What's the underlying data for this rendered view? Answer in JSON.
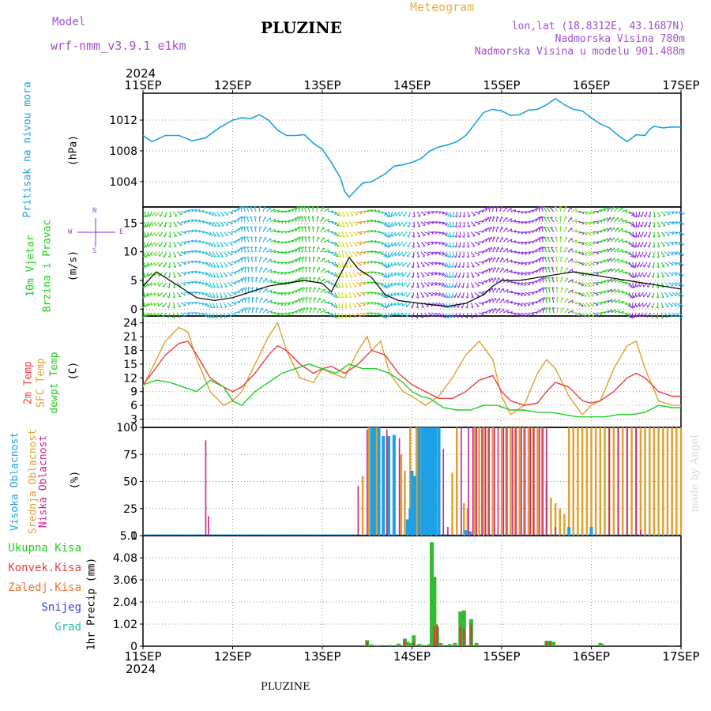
{
  "header": {
    "model_label": "Model",
    "model_name": "wrf-nmm_v3.9.1 e1km",
    "station": "PLUZINE",
    "meteogram": "Meteogram",
    "lonlat": "lon,lat (18.8312E, 43.1687N)",
    "altitude": "Nadmorska Visina 780m",
    "model_altitude": "Nadmorska Visina u modelu 901.488m",
    "year_top": "2024",
    "year_bottom": "2024",
    "footer_station": "PLUZINE",
    "credit": "made by Angel"
  },
  "colors": {
    "pressure": "#1ea0e6",
    "temp2m": "#e84040",
    "sfc": "#e0a030",
    "dewpt": "#22cc22",
    "high_cloud": "#1ea0e6",
    "mid_cloud": "#e0a030",
    "low_cloud": "#cc2288",
    "total_precip": "#33bb33",
    "conv_precip": "#dd3333",
    "wind_purple": "#8a2be2"
  },
  "x_axis": {
    "days": [
      "11SEP",
      "12SEP",
      "13SEP",
      "14SEP",
      "15SEP",
      "16SEP",
      "17SEP"
    ]
  },
  "panels": {
    "pressure": {
      "labels": [
        "Pritisak na nivou mora"
      ],
      "unit": "(hPa)"
    },
    "wind": {
      "labels": [
        "10m Vjetar",
        "Brzina i Pravac"
      ],
      "unit": "(m/s)",
      "compass": {
        "n": "N",
        "s": "S",
        "e": "E",
        "w": "W"
      }
    },
    "temp": {
      "labels": [
        "2m Temp",
        "SFC Temp",
        "dewpt Temp"
      ],
      "unit": "(C)"
    },
    "cloud": {
      "labels": [
        "Visoka Oblacnost",
        "Srednja Oblacnost",
        "Niska Oblacnost"
      ],
      "unit": "(%)"
    },
    "precip": {
      "labels": [
        "Ukupna Kisa",
        "Konvek.Kisa",
        "Zaledj.Kisa",
        "Snijeg",
        "Grad"
      ],
      "unit": "1hr Precip (mm)"
    }
  },
  "chart_data": [
    {
      "type": "line",
      "title": "",
      "ylabel": "(hPa)",
      "ylim": [
        1000.7,
        1015.5
      ],
      "yticks": [
        1004,
        1008,
        1012
      ],
      "x_unit": "day offset from 11SEP 00",
      "series": [
        {
          "name": "Pritisak na nivou mora",
          "x": [
            0,
            0.1,
            0.25,
            0.4,
            0.55,
            0.7,
            0.85,
            1.0,
            1.1,
            1.2,
            1.3,
            1.4,
            1.5,
            1.6,
            1.7,
            1.8,
            1.9,
            2.0,
            2.1,
            2.2,
            2.25,
            2.3,
            2.35,
            2.45,
            2.55,
            2.7,
            2.8,
            2.9,
            3.0,
            3.1,
            3.2,
            3.3,
            3.4,
            3.5,
            3.6,
            3.7,
            3.8,
            3.9,
            4.0,
            4.1,
            4.2,
            4.3,
            4.4,
            4.5,
            4.6,
            4.7,
            4.8,
            4.9,
            5.0,
            5.1,
            5.2,
            5.3,
            5.4,
            5.5,
            5.6,
            5.65,
            5.7,
            5.8,
            5.9,
            6.0
          ],
          "values": [
            1010.0,
            1009.2,
            1010.0,
            1010.0,
            1009.3,
            1009.7,
            1011.0,
            1012.0,
            1012.3,
            1012.2,
            1012.7,
            1012.0,
            1010.7,
            1010.0,
            1010.0,
            1010.1,
            1009.0,
            1008.2,
            1006.5,
            1004.5,
            1002.7,
            1002.0,
            1002.6,
            1003.8,
            1004.0,
            1005.0,
            1006.0,
            1006.2,
            1006.5,
            1007.0,
            1008.0,
            1008.5,
            1008.8,
            1009.2,
            1010.0,
            1011.5,
            1013.0,
            1013.4,
            1013.2,
            1012.6,
            1012.7,
            1013.3,
            1013.4,
            1014.0,
            1014.8,
            1014.0,
            1013.4,
            1013.2,
            1012.3,
            1011.5,
            1011.0,
            1010.0,
            1009.2,
            1010.1,
            1010.0,
            1010.8,
            1011.2,
            1011.0,
            1011.1,
            1011.1
          ]
        }
      ]
    },
    {
      "type": "line",
      "title": "",
      "ylabel": "(m/s)",
      "ylim": [
        -1.2,
        17.8
      ],
      "yticks": [
        0,
        5,
        10,
        15
      ],
      "x_unit": "day offset from 11SEP 00",
      "series": [
        {
          "name": "10m Vjetar",
          "x": [
            0,
            0.15,
            0.3,
            0.45,
            0.6,
            0.8,
            1.0,
            1.2,
            1.4,
            1.6,
            1.8,
            2.0,
            2.1,
            2.2,
            2.3,
            2.4,
            2.55,
            2.7,
            2.85,
            3.0,
            3.2,
            3.4,
            3.6,
            3.8,
            3.9,
            4.0,
            4.2,
            4.4,
            4.6,
            4.8,
            5.0,
            5.2,
            5.4,
            5.6,
            5.8,
            6.0
          ],
          "values": [
            4.0,
            6.5,
            5.0,
            3.5,
            2.0,
            1.5,
            2.0,
            3.0,
            4.0,
            4.5,
            5.0,
            4.5,
            3.0,
            6.0,
            9.0,
            7.0,
            5.5,
            2.5,
            1.5,
            1.2,
            0.8,
            0.5,
            1.0,
            2.5,
            4.0,
            5.0,
            5.0,
            5.5,
            6.0,
            6.5,
            6.0,
            5.5,
            5.0,
            4.5,
            4.0,
            3.5
          ]
        }
      ]
    },
    {
      "type": "line",
      "title": "",
      "ylabel": "(C)",
      "ylim": [
        1.2,
        25.5
      ],
      "yticks": [
        3,
        6,
        9,
        12,
        15,
        18,
        21,
        24
      ],
      "x_unit": "day offset from 11SEP 00",
      "series": [
        {
          "name": "2m Temp",
          "x": [
            0,
            0.1,
            0.25,
            0.4,
            0.5,
            0.6,
            0.75,
            0.9,
            1.0,
            1.1,
            1.25,
            1.4,
            1.5,
            1.6,
            1.75,
            1.9,
            2.0,
            2.1,
            2.25,
            2.4,
            2.55,
            2.7,
            2.85,
            3.0,
            3.15,
            3.3,
            3.45,
            3.6,
            3.75,
            3.9,
            4.0,
            4.1,
            4.25,
            4.4,
            4.5,
            4.6,
            4.75,
            4.9,
            5.0,
            5.1,
            5.25,
            5.4,
            5.5,
            5.6,
            5.75,
            5.9,
            6.0
          ],
          "values": [
            10.5,
            13,
            17,
            19.5,
            20,
            17,
            12,
            10,
            9,
            10,
            13,
            17,
            19,
            18,
            15,
            13,
            14,
            14.5,
            13,
            15,
            18,
            17,
            13,
            10.5,
            9,
            7.5,
            7.5,
            9,
            11.5,
            12.5,
            9,
            7,
            6,
            6.5,
            9,
            11,
            10,
            7,
            6.5,
            7,
            9,
            12,
            13,
            12,
            9,
            8,
            8
          ]
        },
        {
          "name": "SFC Temp",
          "x": [
            0,
            0.1,
            0.25,
            0.4,
            0.5,
            0.6,
            0.75,
            0.9,
            1.0,
            1.1,
            1.25,
            1.4,
            1.5,
            1.6,
            1.75,
            1.9,
            2.0,
            2.1,
            2.25,
            2.4,
            2.5,
            2.55,
            2.65,
            2.75,
            2.9,
            3.0,
            3.15,
            3.3,
            3.45,
            3.6,
            3.75,
            3.9,
            4.0,
            4.1,
            4.25,
            4.4,
            4.5,
            4.6,
            4.75,
            4.9,
            5.0,
            5.1,
            5.25,
            5.4,
            5.5,
            5.6,
            5.75,
            5.9,
            6.0
          ],
          "values": [
            10,
            14,
            20,
            23,
            22,
            16,
            9,
            6,
            7,
            9,
            15,
            21,
            24,
            18,
            12,
            11,
            14,
            13,
            12,
            18,
            21,
            18,
            20,
            13,
            9,
            8,
            6,
            8,
            12,
            17,
            20,
            16,
            8,
            4,
            6,
            13,
            16,
            14,
            8,
            4,
            6,
            7,
            14,
            19,
            20,
            14,
            7,
            6,
            6
          ]
        },
        {
          "name": "dewpt Temp",
          "x": [
            0,
            0.15,
            0.3,
            0.45,
            0.6,
            0.75,
            0.9,
            1.0,
            1.1,
            1.25,
            1.4,
            1.55,
            1.7,
            1.85,
            2.0,
            2.15,
            2.3,
            2.45,
            2.6,
            2.75,
            2.9,
            3.0,
            3.1,
            3.2,
            3.35,
            3.5,
            3.65,
            3.8,
            3.95,
            4.1,
            4.25,
            4.4,
            4.55,
            4.7,
            4.85,
            5.0,
            5.15,
            5.3,
            5.45,
            5.6,
            5.75,
            5.9,
            6.0
          ],
          "values": [
            10.5,
            11.5,
            11,
            10,
            9,
            11.5,
            10,
            7,
            6,
            9,
            11,
            13,
            14,
            15,
            14,
            13,
            15,
            14,
            14,
            13,
            11,
            9,
            8,
            7.5,
            5.5,
            5,
            5,
            6,
            6,
            5,
            5,
            4.5,
            4.5,
            4,
            3.5,
            3.5,
            3.5,
            4,
            4,
            4.5,
            6,
            5.5,
            5.5
          ]
        }
      ]
    },
    {
      "type": "bar",
      "title": "",
      "ylabel": "(%)",
      "ylim": [
        0,
        100
      ],
      "yticks": [
        0,
        25,
        50,
        75,
        100
      ],
      "x_unit": "day offset from 11SEP 00",
      "series": [
        {
          "name": "Visoka Oblacnost",
          "x": [
            2.55,
            2.58,
            2.63,
            2.68,
            2.74,
            2.8,
            2.95,
            2.98,
            3.0,
            3.03,
            3.08,
            3.12,
            3.14,
            3.16,
            3.18,
            3.2,
            3.22,
            3.24,
            3.26,
            3.3,
            3.6,
            3.65,
            4.75,
            5.0
          ],
          "values": [
            100,
            100,
            100,
            92,
            92,
            93,
            15,
            25,
            60,
            55,
            100,
            100,
            100,
            100,
            100,
            100,
            100,
            100,
            100,
            100,
            5,
            4,
            8,
            8
          ]
        },
        {
          "name": "Srednja Oblacnost",
          "x": [
            2.45,
            2.52,
            2.6,
            2.88,
            2.92,
            2.98,
            3.05,
            3.07,
            3.1,
            3.13,
            3.15,
            3.17,
            3.19,
            3.21,
            3.23,
            3.25,
            3.27,
            3.3,
            3.45,
            3.5,
            3.58,
            3.62,
            3.7,
            3.75,
            3.8,
            3.85,
            3.9,
            4.0,
            4.05,
            4.1,
            4.15,
            4.2,
            4.25,
            4.3,
            4.35,
            4.4,
            4.45,
            4.5,
            4.55,
            4.6,
            4.65,
            4.7,
            4.75,
            4.8,
            4.85,
            4.9,
            4.95,
            5.0,
            5.05,
            5.1,
            5.15,
            5.2,
            5.25,
            5.3,
            5.35,
            5.4,
            5.45,
            5.5,
            5.55,
            5.6,
            5.65,
            5.7,
            5.75,
            5.8,
            5.85,
            5.9,
            5.95,
            6.0
          ],
          "values": [
            55,
            100,
            100,
            75,
            60,
            100,
            100,
            100,
            100,
            100,
            100,
            100,
            100,
            100,
            100,
            100,
            100,
            100,
            58,
            100,
            30,
            25,
            100,
            100,
            100,
            100,
            100,
            100,
            100,
            100,
            100,
            100,
            100,
            100,
            100,
            100,
            100,
            50,
            35,
            30,
            25,
            20,
            100,
            100,
            100,
            100,
            100,
            100,
            100,
            100,
            100,
            100,
            100,
            100,
            100,
            100,
            100,
            100,
            100,
            100,
            100,
            100,
            100,
            100,
            100,
            100,
            100,
            100
          ]
        },
        {
          "name": "Niska Oblacnost",
          "x": [
            0.7,
            0.73,
            2.4,
            2.5,
            2.72,
            2.86,
            3.35,
            3.4,
            3.55,
            3.63,
            3.68,
            3.72,
            3.78,
            3.82,
            3.86,
            3.92,
            3.96,
            4.02,
            4.06,
            4.12,
            4.16,
            4.22,
            4.26,
            4.32,
            4.36,
            4.42,
            4.46,
            4.5,
            4.6,
            5.2,
            5.3,
            5.4,
            5.5,
            5.55
          ],
          "values": [
            88,
            18,
            46,
            98,
            98,
            90,
            80,
            8,
            100,
            100,
            100,
            100,
            100,
            100,
            100,
            100,
            100,
            100,
            100,
            100,
            100,
            100,
            100,
            100,
            100,
            100,
            100,
            100,
            8,
            100,
            100,
            100,
            100,
            5
          ]
        }
      ]
    },
    {
      "type": "bar",
      "title": "",
      "ylabel": "1hr Precip (mm)",
      "ylim": [
        0,
        5.1
      ],
      "yticks": [
        0,
        1.02,
        2.04,
        3.06,
        4.08,
        5.1
      ],
      "x_unit": "day offset from 11SEP 00",
      "series": [
        {
          "name": "Ukupna Kisa",
          "x": [
            2.5,
            2.55,
            2.62,
            2.75,
            2.85,
            2.92,
            2.95,
            2.98,
            3.02,
            3.08,
            3.12,
            3.2,
            3.22,
            3.25,
            3.28,
            3.32,
            3.42,
            3.48,
            3.54,
            3.58,
            3.66,
            3.72,
            4.5,
            4.54,
            4.58,
            5.1,
            5.12,
            5.9
          ],
          "values": [
            0.28,
            0.08,
            0.05,
            0.06,
            0.12,
            0.35,
            0.2,
            0.15,
            0.5,
            0.1,
            0.06,
            0.1,
            4.8,
            3.2,
            0.9,
            0.15,
            0.1,
            0.15,
            1.6,
            1.65,
            1.25,
            0.15,
            0.25,
            0.25,
            0.2,
            0.15,
            0.1,
            0.05
          ]
        },
        {
          "name": "Konvek.Kisa",
          "x": [
            2.5,
            2.92,
            3.02,
            3.25,
            3.28,
            3.54,
            3.58,
            3.66,
            4.5,
            4.54
          ],
          "values": [
            0.2,
            0.28,
            0.2,
            0.9,
            1.0,
            0.9,
            0.8,
            1.0,
            0.2,
            0.2
          ]
        }
      ]
    }
  ]
}
